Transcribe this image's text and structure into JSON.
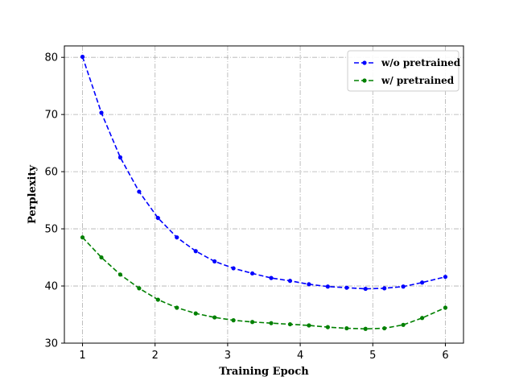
{
  "chart_data": {
    "type": "line",
    "xlabel": "Training Epoch",
    "ylabel": "Perplexity",
    "xlim": [
      0.75,
      6.25
    ],
    "ylim": [
      30,
      82
    ],
    "xticks": [
      1,
      2,
      3,
      4,
      5,
      6
    ],
    "yticks": [
      30,
      40,
      50,
      60,
      70,
      80
    ],
    "grid": true,
    "legend_position": "top-right",
    "series": [
      {
        "name": "w/o pretrained",
        "color": "#0000ff",
        "x": [
          1.0,
          1.26,
          1.52,
          1.78,
          2.04,
          2.3,
          2.56,
          2.82,
          3.08,
          3.34,
          3.6,
          3.86,
          4.12,
          4.38,
          4.64,
          4.9,
          5.16,
          5.42,
          5.68,
          6.0
        ],
        "values": [
          80.1,
          70.3,
          62.5,
          56.5,
          51.9,
          48.5,
          46.1,
          44.3,
          43.1,
          42.2,
          41.4,
          40.9,
          40.3,
          39.9,
          39.7,
          39.5,
          39.6,
          39.9,
          40.6,
          41.6
        ]
      },
      {
        "name": "w/ pretrained",
        "color": "#008000",
        "x": [
          1.0,
          1.26,
          1.52,
          1.78,
          2.04,
          2.3,
          2.56,
          2.82,
          3.08,
          3.34,
          3.6,
          3.86,
          4.12,
          4.38,
          4.64,
          4.9,
          5.16,
          5.42,
          5.68,
          6.0
        ],
        "values": [
          48.5,
          45.0,
          42.0,
          39.6,
          37.6,
          36.2,
          35.2,
          34.5,
          34.0,
          33.7,
          33.5,
          33.3,
          33.1,
          32.8,
          32.6,
          32.5,
          32.6,
          33.2,
          34.4,
          36.2
        ]
      }
    ]
  }
}
